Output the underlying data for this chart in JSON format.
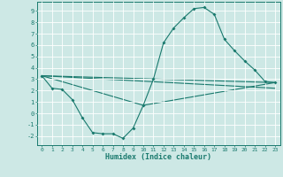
{
  "xlabel": "Humidex (Indice chaleur)",
  "background_color": "#cde8e5",
  "grid_color": "#ffffff",
  "line_color": "#1a7a6e",
  "xlim": [
    -0.5,
    23.5
  ],
  "ylim": [
    -2.8,
    9.8
  ],
  "xticks": [
    0,
    1,
    2,
    3,
    4,
    5,
    6,
    7,
    8,
    9,
    10,
    11,
    12,
    13,
    14,
    15,
    16,
    17,
    18,
    19,
    20,
    21,
    22,
    23
  ],
  "yticks": [
    -2,
    -1,
    0,
    1,
    2,
    3,
    4,
    5,
    6,
    7,
    8,
    9
  ],
  "line1_x": [
    0,
    1,
    2,
    3,
    4,
    5,
    6,
    7,
    8,
    9,
    10,
    11,
    12,
    13,
    14,
    15,
    16,
    17,
    18,
    19,
    20,
    21,
    22,
    23
  ],
  "line1_y": [
    3.3,
    2.2,
    2.1,
    1.2,
    -0.4,
    -1.7,
    -1.8,
    -1.8,
    -2.2,
    -1.3,
    0.7,
    3.0,
    6.2,
    7.5,
    8.4,
    9.2,
    9.3,
    8.7,
    6.5,
    5.5,
    4.6,
    3.8,
    2.8,
    2.7
  ],
  "line2_x": [
    0,
    23
  ],
  "line2_y": [
    3.3,
    2.7
  ],
  "line3_x": [
    0,
    23
  ],
  "line3_y": [
    3.3,
    2.2
  ],
  "line4_x": [
    0,
    10,
    23
  ],
  "line4_y": [
    3.3,
    0.7,
    2.7
  ]
}
